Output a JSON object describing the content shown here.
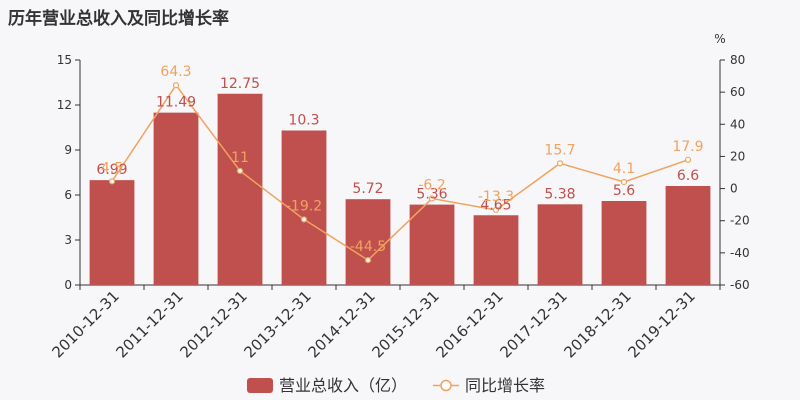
{
  "title": "历年营业总收入及同比增长率",
  "chart_data": {
    "type": "bar",
    "title": "历年营业总收入及同比增长率",
    "categories": [
      "2010-12-31",
      "2011-12-31",
      "2012-12-31",
      "2013-12-31",
      "2014-12-31",
      "2015-12-31",
      "2016-12-31",
      "2017-12-31",
      "2018-12-31",
      "2019-12-31"
    ],
    "series": [
      {
        "name": "营业总收入（亿）",
        "type": "bar",
        "axis": "left",
        "color": "#c0504d",
        "values": [
          6.99,
          11.49,
          12.75,
          10.3,
          5.72,
          5.36,
          4.65,
          5.38,
          5.6,
          6.6
        ],
        "labels": [
          "6.99",
          "11.49",
          "12.75",
          "10.3",
          "5.72",
          "5.36",
          "4.65",
          "5.38",
          "5.6",
          "6.6"
        ]
      },
      {
        "name": "同比增长率",
        "type": "line",
        "axis": "right",
        "color": "#f0a35e",
        "values": [
          4.5,
          64.3,
          11,
          -19.2,
          -44.5,
          -6.2,
          -13.3,
          15.7,
          4.1,
          17.9
        ],
        "labels": [
          "4.5",
          "64.3",
          "11",
          "-19.2",
          "-44.5",
          "-6.2",
          "-13.3",
          "15.7",
          "4.1",
          "17.9"
        ]
      }
    ],
    "y_left": {
      "min": 0,
      "max": 15,
      "ticks": [
        "0",
        "3",
        "6",
        "9",
        "12",
        "15"
      ]
    },
    "y_right": {
      "min": -60,
      "max": 80,
      "unit": "%",
      "ticks": [
        "-60",
        "-40",
        "-20",
        "0",
        "20",
        "40",
        "60",
        "80"
      ]
    },
    "legend_position": "bottom"
  }
}
